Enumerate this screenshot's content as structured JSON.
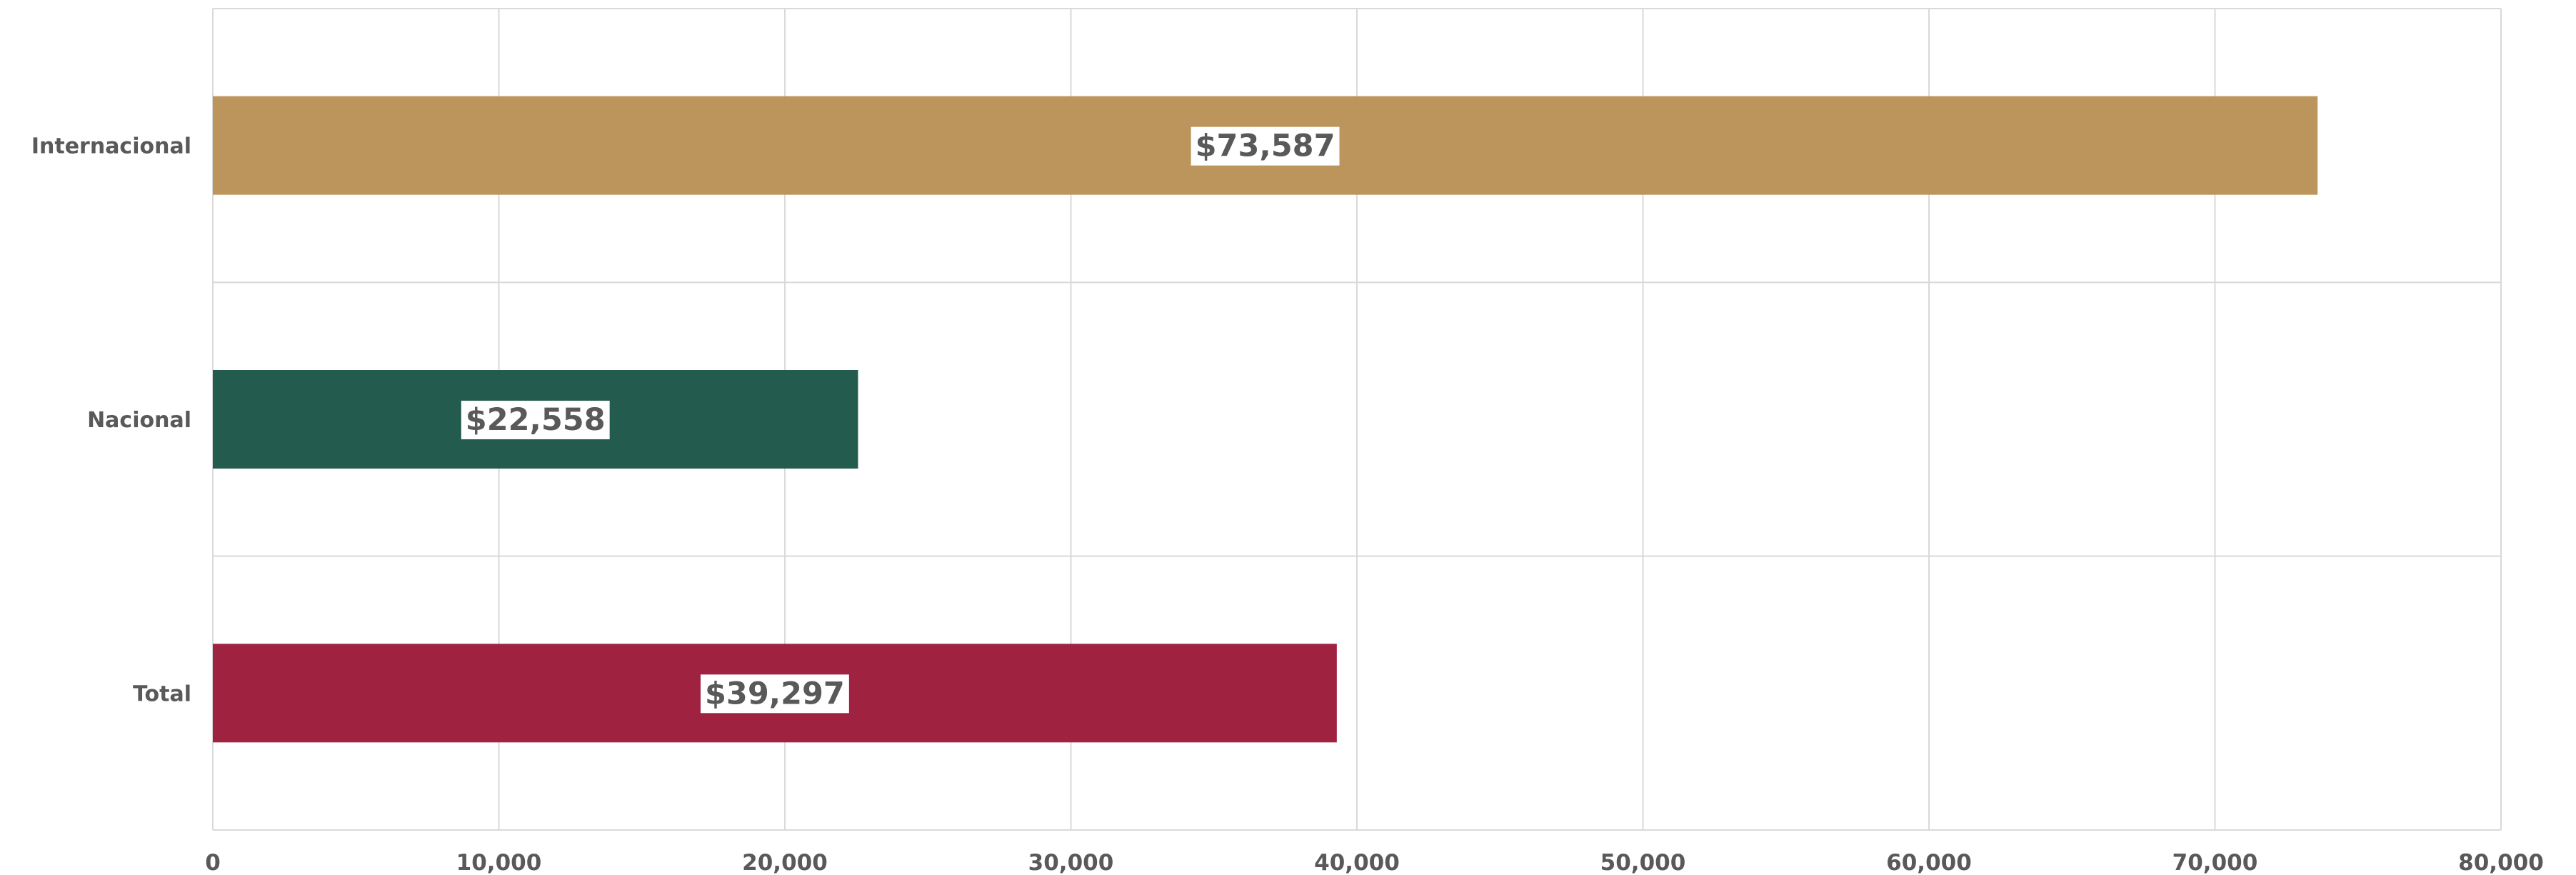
{
  "chart_data": {
    "type": "bar",
    "orientation": "horizontal",
    "categories": [
      "Internacional",
      "Nacional",
      "Total"
    ],
    "values": [
      73587,
      22558,
      39297
    ],
    "data_labels": [
      "$73,587",
      "$22,558",
      "$39,297"
    ],
    "colors": [
      "#BC955C",
      "#235B4E",
      "#9F2241"
    ],
    "x_ticks": [
      "0",
      "10,000",
      "20,000",
      "30,000",
      "40,000",
      "50,000",
      "60,000",
      "70,000",
      "80,000"
    ],
    "xlim": [
      0,
      80000
    ],
    "grid": true,
    "legend": "none"
  }
}
